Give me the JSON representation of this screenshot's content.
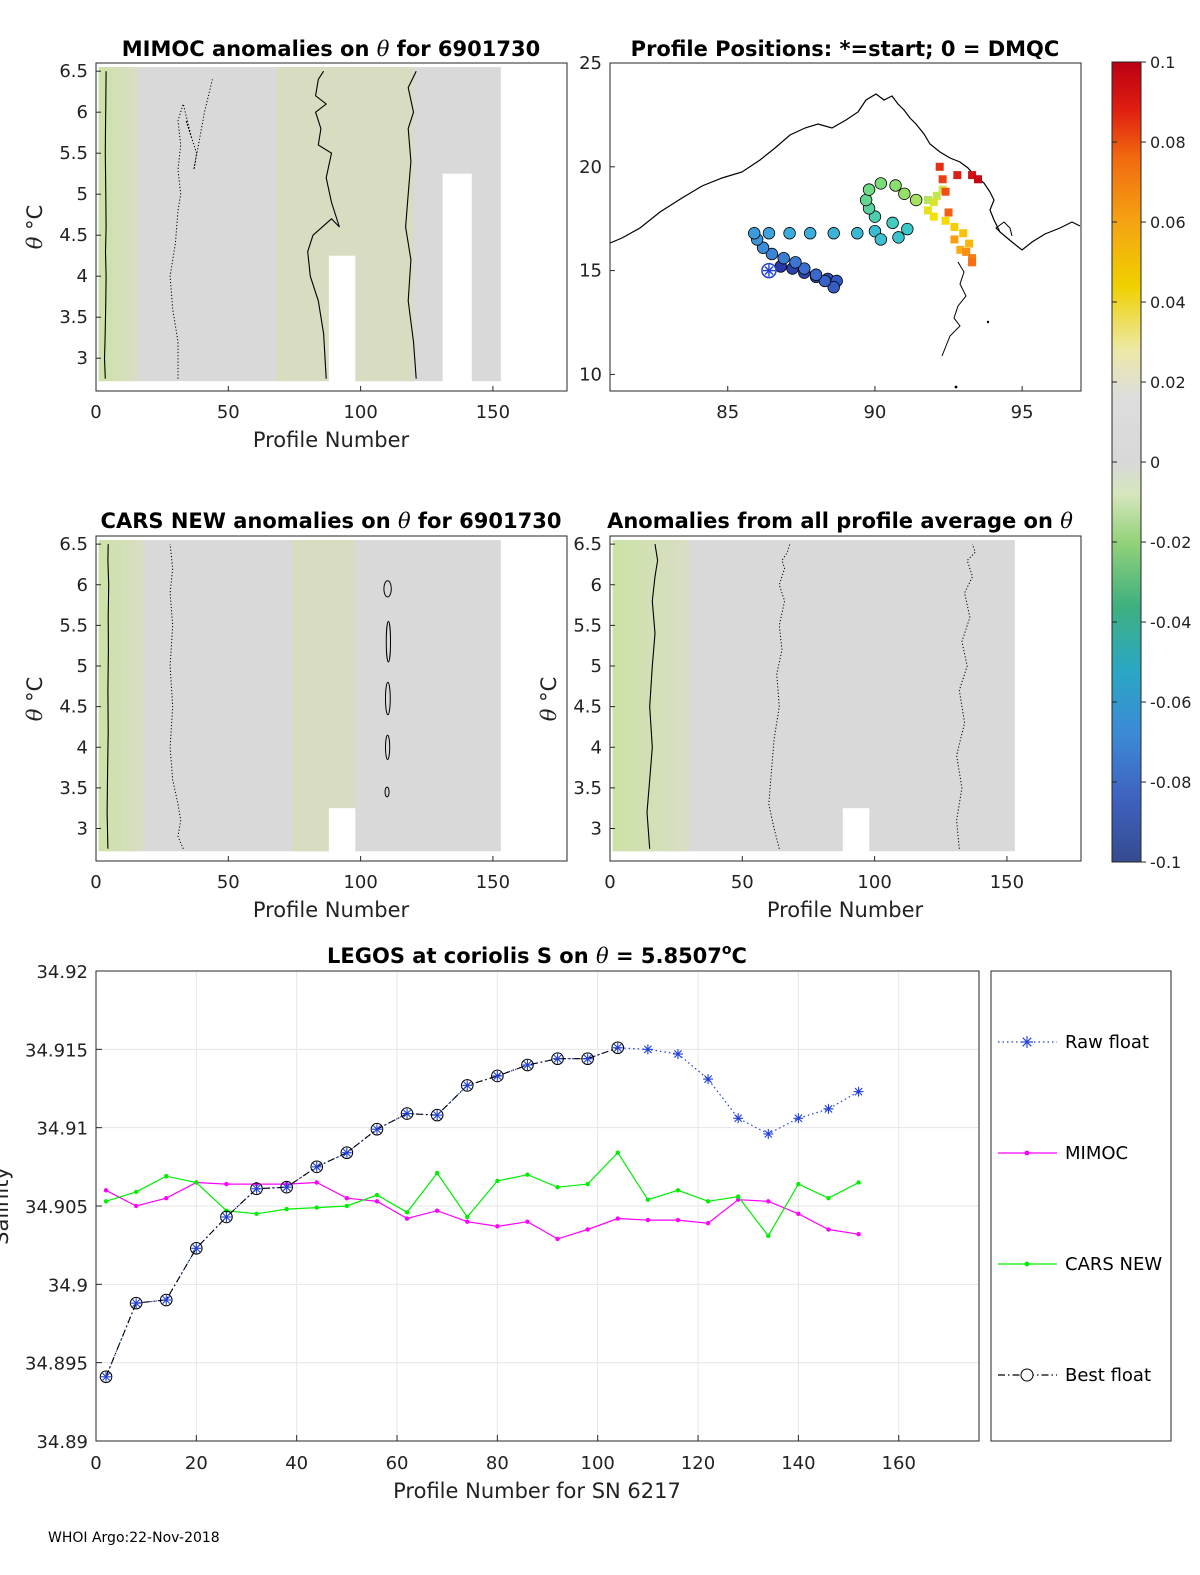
{
  "footer": "WHOI Argo:22-Nov-2018",
  "colorbar": {
    "ticks": [
      "0.1",
      "0.08",
      "0.06",
      "0.04",
      "0.02",
      "0",
      "-0.02",
      "-0.04",
      "-0.06",
      "-0.08",
      "-0.1"
    ],
    "range": [
      -0.1,
      0.1
    ]
  },
  "colors": {
    "raw_float": "#1f3fd6",
    "mimoc": "#ff00ff",
    "cars_new": "#00ee00",
    "best_float": "#000000",
    "anomaly_fill": "#d9d9d9",
    "anomaly_green": "#cfe3a8"
  },
  "chart_data": [
    {
      "id": "mimoc",
      "type": "heatmap",
      "title_pre": "MIMOC anomalies on ",
      "title_sym": "θ",
      "title_post": "  for 6901730",
      "xlabel": "Profile Number",
      "ylabel_sym": "θ",
      "ylabel_unit": "°C",
      "xlim": [
        0,
        178
      ],
      "ylim": [
        2.6,
        6.6
      ],
      "xticks": [
        0,
        50,
        100,
        150
      ],
      "yticks": [
        3,
        3.5,
        4,
        4.5,
        5,
        5.5,
        6,
        6.5
      ],
      "data_extent": [
        1,
        153
      ],
      "greenish_bands": [
        [
          1,
          16
        ],
        [
          68,
          120
        ]
      ],
      "gaps": [
        {
          "x": [
            88,
            98
          ],
          "y_top": 4.25
        },
        {
          "x": [
            131,
            142
          ],
          "y_top": 5.25
        }
      ],
      "contours": [
        {
          "style": "solid",
          "x": [
            3.5,
            3.2,
            3.4,
            3.6,
            3.7,
            3.8,
            3.6,
            3.8,
            3.7,
            3.5,
            3.6,
            3.7,
            3.8
          ],
          "y": [
            2.75,
            3.0,
            3.2,
            3.5,
            3.7,
            4.0,
            4.3,
            4.6,
            5.0,
            5.5,
            5.8,
            6.1,
            6.5
          ]
        },
        {
          "style": "dotted",
          "x": [
            31,
            31,
            29,
            28,
            30,
            31,
            32,
            31,
            32,
            31,
            33,
            36,
            34,
            38,
            37,
            41,
            44
          ],
          "y": [
            2.75,
            3.2,
            3.6,
            4.0,
            4.4,
            4.8,
            5.0,
            5.3,
            5.6,
            5.9,
            6.1,
            5.7,
            5.9,
            5.5,
            5.3,
            6.0,
            6.4
          ]
        },
        {
          "style": "solid",
          "x": [
            87,
            86,
            84,
            81,
            80,
            82,
            89,
            92,
            89,
            87,
            89,
            84,
            85,
            83,
            87,
            83,
            84,
            86
          ],
          "y": [
            2.75,
            3.3,
            3.7,
            4.0,
            4.3,
            4.5,
            4.7,
            4.6,
            4.9,
            5.2,
            5.5,
            5.6,
            5.8,
            6.0,
            6.1,
            6.2,
            6.4,
            6.5
          ]
        },
        {
          "style": "solid",
          "x": [
            121,
            120,
            118,
            119,
            117,
            118,
            119,
            118,
            120,
            118,
            121
          ],
          "y": [
            2.75,
            3.2,
            3.7,
            4.2,
            4.6,
            5.0,
            5.4,
            5.8,
            6.0,
            6.3,
            6.5
          ]
        }
      ]
    },
    {
      "id": "positions",
      "type": "scatter",
      "title": "Profile Positions: *=start; 0 = DMQC",
      "xlim": [
        81,
        97
      ],
      "ylim": [
        9.2,
        25
      ],
      "xticks": [
        85,
        90,
        95
      ],
      "yticks": [
        10,
        15,
        20,
        25
      ],
      "start": {
        "lon": 86.4,
        "lat": 15.0
      },
      "track": [
        [
          86.4,
          15.0
        ],
        [
          86.8,
          15.2
        ],
        [
          87.2,
          15.1
        ],
        [
          87.6,
          14.9
        ],
        [
          88.0,
          14.7
        ],
        [
          88.4,
          14.6
        ],
        [
          88.7,
          14.5
        ],
        [
          88.6,
          14.2
        ],
        [
          88.3,
          14.5
        ],
        [
          88.0,
          14.8
        ],
        [
          87.6,
          15.1
        ],
        [
          87.3,
          15.4
        ],
        [
          86.9,
          15.6
        ],
        [
          86.5,
          15.8
        ],
        [
          86.2,
          16.1
        ],
        [
          86.0,
          16.5
        ],
        [
          85.9,
          16.8
        ],
        [
          86.4,
          16.8
        ],
        [
          87.1,
          16.8
        ],
        [
          87.8,
          16.8
        ],
        [
          88.6,
          16.8
        ],
        [
          89.4,
          16.8
        ],
        [
          90.0,
          16.9
        ],
        [
          90.2,
          16.5
        ],
        [
          90.8,
          16.6
        ],
        [
          91.1,
          17.0
        ],
        [
          90.6,
          17.3
        ],
        [
          90.0,
          17.6
        ],
        [
          89.8,
          18.0
        ],
        [
          89.7,
          18.4
        ],
        [
          89.8,
          18.9
        ],
        [
          90.2,
          19.2
        ],
        [
          90.7,
          19.1
        ],
        [
          91.0,
          18.7
        ],
        [
          91.4,
          18.4
        ],
        [
          91.8,
          18.4
        ],
        [
          92.1,
          18.6
        ],
        [
          92.3,
          18.9
        ],
        [
          92.0,
          18.3
        ],
        [
          91.8,
          17.9
        ],
        [
          92.0,
          17.6
        ],
        [
          92.4,
          17.4
        ],
        [
          92.7,
          17.1
        ],
        [
          93.0,
          16.8
        ],
        [
          93.2,
          16.3
        ],
        [
          92.9,
          16.0
        ],
        [
          92.7,
          16.5
        ],
        [
          93.1,
          15.9
        ],
        [
          93.3,
          15.6
        ],
        [
          93.3,
          15.4
        ],
        [
          92.5,
          17.8
        ],
        [
          92.4,
          18.8
        ],
        [
          92.3,
          19.4
        ],
        [
          92.2,
          20.0
        ],
        [
          92.8,
          19.6
        ],
        [
          93.3,
          19.6
        ],
        [
          93.5,
          19.4
        ]
      ]
    },
    {
      "id": "cars",
      "type": "heatmap",
      "title_pre": "CARS NEW anomalies on ",
      "title_sym": "θ",
      "title_post": " for 6901730",
      "xlabel": "Profile Number",
      "ylabel_sym": "θ",
      "ylabel_unit": "°C",
      "xlim": [
        0,
        178
      ],
      "ylim": [
        2.6,
        6.6
      ],
      "xticks": [
        0,
        50,
        100,
        150
      ],
      "yticks": [
        3,
        3.5,
        4,
        4.5,
        5,
        5.5,
        6,
        6.5
      ],
      "data_extent": [
        1,
        153
      ],
      "greenish_bands": [
        [
          1,
          18
        ],
        [
          74,
          98
        ]
      ],
      "gaps": [
        {
          "x": [
            88,
            98
          ],
          "y_top": 3.25
        }
      ],
      "contours": [
        {
          "style": "solid",
          "x": [
            4.5,
            4.2,
            4.4,
            4.6,
            4.5,
            4.7,
            4.6,
            4.8,
            4.5,
            4.6
          ],
          "y": [
            2.75,
            3.2,
            3.7,
            4.2,
            4.7,
            5.2,
            5.6,
            6.0,
            6.3,
            6.5
          ]
        },
        {
          "style": "dotted",
          "x": [
            33,
            31,
            32,
            31,
            29,
            28,
            29,
            28,
            29,
            28,
            29,
            28
          ],
          "y": [
            2.75,
            2.9,
            3.1,
            3.3,
            3.6,
            4.0,
            4.5,
            5.0,
            5.5,
            5.9,
            6.2,
            6.5
          ]
        }
      ],
      "loops": [
        [
          110.2,
          5.95,
          1.4,
          0.1
        ],
        [
          110.5,
          5.3,
          0.8,
          0.25
        ],
        [
          110.3,
          4.6,
          0.9,
          0.2
        ],
        [
          110.2,
          4.0,
          0.8,
          0.15
        ],
        [
          110.0,
          3.45,
          0.6,
          0.06
        ]
      ]
    },
    {
      "id": "allprof",
      "type": "heatmap",
      "title_pre": "Anomalies from all profile average on ",
      "title_sym": "θ",
      "title_post": "",
      "xlabel": "Profile Number",
      "ylabel_sym": "θ",
      "ylabel_unit": "°C",
      "xlim": [
        0,
        178
      ],
      "ylim": [
        2.6,
        6.6
      ],
      "xticks": [
        0,
        50,
        100,
        150
      ],
      "yticks": [
        3,
        3.5,
        4,
        4.5,
        5,
        5.5,
        6,
        6.5
      ],
      "data_extent": [
        1,
        153
      ],
      "greenish_bands": [
        [
          1,
          30
        ]
      ],
      "gaps": [
        {
          "x": [
            88,
            98
          ],
          "y_top": 3.25
        }
      ],
      "contours": [
        {
          "style": "solid",
          "x": [
            15,
            14,
            15,
            16,
            15,
            16,
            17,
            16,
            17,
            18,
            17
          ],
          "y": [
            2.75,
            3.2,
            3.6,
            4.0,
            4.5,
            5.0,
            5.4,
            5.8,
            6.1,
            6.3,
            6.5
          ]
        },
        {
          "style": "dotted",
          "x": [
            64,
            62,
            60,
            61,
            62,
            64,
            63,
            65,
            64,
            66,
            64,
            66,
            65,
            67,
            68
          ],
          "y": [
            2.75,
            3.0,
            3.3,
            3.7,
            4.1,
            4.5,
            4.9,
            5.2,
            5.5,
            5.8,
            6.0,
            6.2,
            6.3,
            6.4,
            6.5
          ]
        },
        {
          "style": "dotted",
          "x": [
            132,
            131,
            133,
            131,
            134,
            132,
            135,
            133,
            136,
            134,
            137,
            135,
            138,
            137
          ],
          "y": [
            2.75,
            3.1,
            3.5,
            3.9,
            4.3,
            4.7,
            5.0,
            5.3,
            5.6,
            5.9,
            6.1,
            6.3,
            6.4,
            6.5
          ]
        }
      ]
    },
    {
      "id": "salinity",
      "type": "line",
      "title_pre": "LEGOS at coriolis S on ",
      "title_sym": "θ",
      "title_post": " = 5.8507",
      "title_sup": "o",
      "title_end": "C",
      "xlabel": "Profile Number for SN 6217",
      "ylabel": "Salinity",
      "xlim": [
        0,
        176
      ],
      "ylim": [
        34.89,
        34.92
      ],
      "xticks": [
        0,
        20,
        40,
        60,
        80,
        100,
        120,
        140,
        160
      ],
      "yticks": [
        "34.89",
        "34.895",
        "34.9",
        "34.905",
        "34.91",
        "34.915",
        "34.92"
      ],
      "x": [
        2,
        8,
        14,
        20,
        26,
        32,
        38,
        44,
        50,
        56,
        62,
        68,
        74,
        80,
        86,
        92,
        98,
        104,
        110,
        116,
        122,
        128,
        134,
        140,
        146,
        152
      ],
      "series": [
        {
          "name": "Raw float",
          "values": [
            34.8941,
            34.8988,
            34.899,
            34.9023,
            34.9043,
            34.9061,
            34.9062,
            34.9075,
            34.9084,
            34.9099,
            34.9109,
            34.9108,
            34.9127,
            34.9133,
            34.914,
            34.9144,
            34.9144,
            34.9151,
            34.915,
            34.9147,
            34.9131,
            34.9106,
            34.9096,
            34.9106,
            34.9112,
            34.9123
          ]
        },
        {
          "name": "MIMOC",
          "values": [
            34.906,
            34.905,
            34.9055,
            34.9065,
            34.9064,
            34.9064,
            34.9064,
            34.9065,
            34.9055,
            34.9053,
            34.9042,
            34.9047,
            34.904,
            34.9037,
            34.904,
            34.9029,
            34.9035,
            34.9042,
            34.9041,
            34.9041,
            34.9039,
            34.9054,
            34.9053,
            34.9045,
            34.9035,
            34.9032
          ]
        },
        {
          "name": "CARS NEW",
          "values": [
            34.9053,
            34.9059,
            34.9069,
            34.9065,
            34.9047,
            34.9045,
            34.9048,
            34.9049,
            34.905,
            34.9057,
            34.9046,
            34.9071,
            34.9043,
            34.9066,
            34.907,
            34.9062,
            34.9064,
            34.9084,
            34.9054,
            34.906,
            34.9053,
            34.9056,
            34.9031,
            34.9064,
            34.9055,
            34.9065
          ]
        },
        {
          "name": "Best float",
          "values": [
            34.8941,
            34.8988,
            34.899,
            34.9023,
            34.9043,
            34.9061,
            34.9062,
            34.9075,
            34.9084,
            34.9099,
            34.9109,
            34.9108,
            34.9127,
            34.9133,
            34.914,
            34.9144,
            34.9144,
            34.9151,
            null,
            null,
            null,
            null,
            null,
            null,
            null,
            null
          ]
        }
      ]
    }
  ]
}
